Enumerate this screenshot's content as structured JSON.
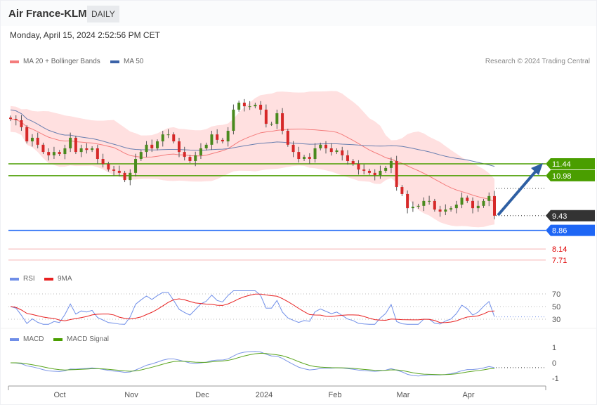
{
  "header": {
    "title": "Air France-KLM",
    "period": "DAILY",
    "datetime": "Monday, April 15, 2024 2:52:56 PM CET"
  },
  "legend": {
    "ma20": "MA 20 + Bollinger Bands",
    "ma50": "MA 50",
    "rsi": "RSI",
    "rsi_ma": "9MA",
    "macd": "MACD",
    "macd_signal": "MACD Signal"
  },
  "credit": "Research © 2024 Trading Central",
  "colors": {
    "up": "#4a8a1e",
    "down": "#d62828",
    "ma20": "#f47c7c",
    "band": "#ffe0e0",
    "ma50": "#6a7fb0",
    "resistance": "#4a9e00",
    "support": "#1e66f5",
    "target": "#f08080",
    "last": "#333333",
    "arrow": "#2e5fa3",
    "rsi": "#6f8ee8",
    "rsi_ma": "#e82020",
    "macd": "#7b95e6",
    "signal": "#5aa51e"
  },
  "chart_data": {
    "type": "candlestick",
    "closes": [
      13.18,
      13.13,
      12.86,
      12.31,
      12.45,
      12.18,
      11.9,
      11.77,
      11.9,
      11.82,
      12.04,
      12.45,
      11.9,
      12.04,
      11.98,
      12.04,
      11.63,
      11.44,
      11.22,
      11.17,
      11.09,
      10.81,
      11.09,
      11.63,
      11.9,
      12.18,
      12.04,
      12.31,
      12.58,
      12.58,
      12.31,
      11.9,
      11.71,
      11.55,
      11.77,
      12.04,
      12.18,
      12.58,
      12.37,
      12.31,
      12.72,
      13.54,
      13.81,
      13.67,
      13.67,
      13.73,
      13.54,
      12.99,
      12.99,
      13.4,
      12.72,
      12.18,
      11.9,
      11.63,
      11.71,
      11.63,
      12.04,
      12.18,
      12.04,
      11.9,
      11.96,
      11.77,
      11.55,
      11.44,
      11.22,
      11.17,
      11.09,
      11.0,
      11.17,
      11.28,
      11.55,
      10.54,
      10.27,
      9.72,
      9.78,
      9.81,
      10.0,
      10.0,
      9.67,
      9.59,
      9.67,
      9.72,
      9.86,
      10.13,
      10.0,
      9.72,
      9.81,
      10.0,
      10.19,
      9.43
    ],
    "x_labels": [
      "Oct",
      "Nov",
      "Dec",
      "2024",
      "Feb",
      "Mar",
      "Apr"
    ],
    "levels": [
      {
        "label": "11.44",
        "value": 11.44,
        "kind": "resistance"
      },
      {
        "label": "10.98",
        "value": 10.98,
        "kind": "resistance"
      },
      {
        "label": "9.43",
        "value": 9.43,
        "kind": "last"
      },
      {
        "label": "8.86",
        "value": 8.86,
        "kind": "support"
      },
      {
        "label": "8.14",
        "value": 8.14,
        "kind": "target"
      },
      {
        "label": "7.71",
        "value": 7.71,
        "kind": "target"
      }
    ],
    "rsi_ticks": [
      "70",
      "50",
      "30"
    ],
    "macd_ticks": [
      "1",
      "0",
      "-1"
    ]
  }
}
